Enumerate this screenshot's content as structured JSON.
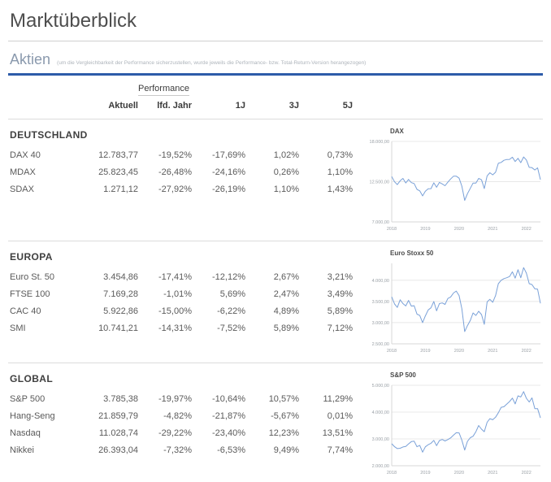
{
  "page": {
    "title": "Marktüberblick"
  },
  "section": {
    "title": "Aktien",
    "note": "(um die Vergleichbarkeit der Performance sicherzustellen, wurde jeweils die Performance- bzw. Total-Return-Version herangezogen)"
  },
  "colors": {
    "accent": "#2d5ba9",
    "chart_line": "#7aa1d8",
    "grid": "#e8e8e8",
    "axis": "#d7d7d7",
    "tick_text": "#9aa0a6"
  },
  "table": {
    "group_header": "Performance",
    "columns": [
      "Aktuell",
      "lfd. Jahr",
      "1J",
      "3J",
      "5J"
    ],
    "sections": [
      {
        "name": "DEUTSCHLAND",
        "rows": [
          {
            "label": "DAX 40",
            "values": [
              "12.783,77",
              "-19,52%",
              "-17,69%",
              "1,02%",
              "0,73%"
            ]
          },
          {
            "label": "MDAX",
            "values": [
              "25.823,45",
              "-26,48%",
              "-24,16%",
              "0,26%",
              "1,10%"
            ]
          },
          {
            "label": "SDAX",
            "values": [
              "1.271,12",
              "-27,92%",
              "-26,19%",
              "1,10%",
              "1,43%"
            ]
          }
        ]
      },
      {
        "name": "EUROPA",
        "rows": [
          {
            "label": "Euro St. 50",
            "values": [
              "3.454,86",
              "-17,41%",
              "-12,12%",
              "2,67%",
              "3,21%"
            ]
          },
          {
            "label": "FTSE 100",
            "values": [
              "7.169,28",
              "-1,01%",
              "5,69%",
              "2,47%",
              "3,49%"
            ]
          },
          {
            "label": "CAC 40",
            "values": [
              "5.922,86",
              "-15,00%",
              "-6,22%",
              "4,89%",
              "5,89%"
            ]
          },
          {
            "label": "SMI",
            "values": [
              "10.741,21",
              "-14,31%",
              "-7,52%",
              "5,89%",
              "7,12%"
            ]
          }
        ]
      },
      {
        "name": "GLOBAL",
        "rows": [
          {
            "label": "S&P 500",
            "values": [
              "3.785,38",
              "-19,97%",
              "-10,64%",
              "10,57%",
              "11,29%"
            ]
          },
          {
            "label": "Hang-Seng",
            "values": [
              "21.859,79",
              "-4,82%",
              "-21,87%",
              "-5,67%",
              "0,01%"
            ]
          },
          {
            "label": "Nasdaq",
            "values": [
              "11.028,74",
              "-29,22%",
              "-23,40%",
              "12,23%",
              "13,51%"
            ]
          },
          {
            "label": "Nikkei",
            "values": [
              "26.393,04",
              "-7,32%",
              "-6,53%",
              "9,49%",
              "7,74%"
            ]
          }
        ]
      }
    ]
  },
  "chart_data": [
    {
      "type": "line",
      "title": "DAX",
      "x_labels": [
        "2018",
        "2019",
        "2020",
        "2021",
        "2022"
      ],
      "ylim": [
        7000,
        18000
      ],
      "yticks": [
        {
          "label": "18.000,00",
          "value": 18000
        },
        {
          "label": "12.500,00",
          "value": 12500
        },
        {
          "label": "7.000,00",
          "value": 7000
        }
      ],
      "values": [
        13200,
        12480,
        12100,
        12620,
        12950,
        12320,
        12800,
        12370,
        12250,
        11450,
        11250,
        10560,
        11200,
        11520,
        11550,
        12340,
        11730,
        12400,
        12190,
        11940,
        12430,
        12870,
        13240,
        13250,
        12980,
        11890,
        9940,
        10860,
        11590,
        12310,
        12310,
        12950,
        12760,
        11560,
        13290,
        13720,
        13430,
        13790,
        15010,
        15130,
        15420,
        15530,
        15540,
        15840,
        15260,
        15690,
        15100,
        15880,
        15470,
        14460,
        14410,
        14100,
        14390,
        12780
      ]
    },
    {
      "type": "line",
      "title": "Euro Stoxx 50",
      "x_labels": [
        "2018",
        "2019",
        "2020",
        "2021",
        "2022"
      ],
      "ylim": [
        2500,
        4400
      ],
      "yticks": [
        {
          "label": "4.000,00",
          "value": 4000
        },
        {
          "label": "3.500,00",
          "value": 3500
        },
        {
          "label": "3.000,00",
          "value": 3000
        },
        {
          "label": "2.500,00",
          "value": 2500
        }
      ],
      "values": [
        3610,
        3440,
        3360,
        3540,
        3450,
        3395,
        3525,
        3390,
        3400,
        3200,
        3170,
        3000,
        3160,
        3300,
        3350,
        3500,
        3280,
        3450,
        3465,
        3430,
        3570,
        3605,
        3700,
        3745,
        3640,
        3330,
        2790,
        2930,
        3050,
        3230,
        3170,
        3270,
        3190,
        2960,
        3490,
        3550,
        3480,
        3640,
        3920,
        4000,
        4040,
        4060,
        4090,
        4200,
        4050,
        4250,
        4060,
        4300,
        4170,
        3920,
        3900,
        3800,
        3790,
        3455
      ]
    },
    {
      "type": "line",
      "title": "S&P 500",
      "x_labels": [
        "2018",
        "2019",
        "2020",
        "2021",
        "2022"
      ],
      "ylim": [
        2000,
        5000
      ],
      "yticks": [
        {
          "label": "5.000,00",
          "value": 5000
        },
        {
          "label": "4.000,00",
          "value": 4000
        },
        {
          "label": "3.000,00",
          "value": 3000
        },
        {
          "label": "2.000,00",
          "value": 2000
        }
      ],
      "values": [
        2820,
        2710,
        2640,
        2650,
        2700,
        2720,
        2815,
        2900,
        2915,
        2710,
        2760,
        2505,
        2705,
        2785,
        2835,
        2945,
        2750,
        2940,
        2980,
        2925,
        2975,
        3040,
        3140,
        3230,
        3225,
        2955,
        2585,
        2910,
        3045,
        3100,
        3270,
        3500,
        3365,
        3270,
        3620,
        3755,
        3715,
        3810,
        3975,
        4180,
        4200,
        4300,
        4395,
        4520,
        4305,
        4605,
        4565,
        4765,
        4515,
        4375,
        4530,
        4130,
        4130,
        3785
      ]
    }
  ]
}
